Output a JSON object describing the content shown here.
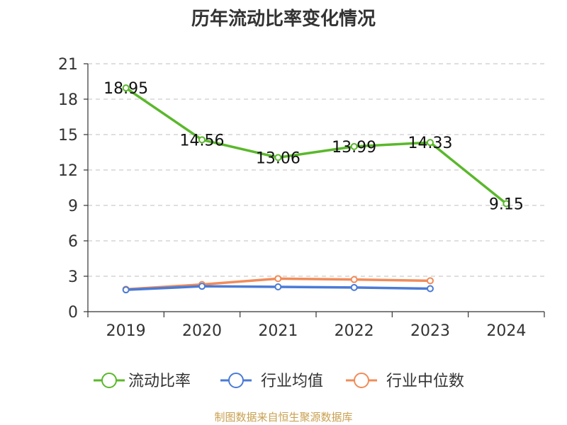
{
  "title": "历年流动比率变化情况",
  "source": "制图数据来自恒生聚源数据库",
  "chart_data": {
    "type": "line",
    "title": "历年流动比率变化情况",
    "categories": [
      "2019",
      "2020",
      "2021",
      "2022",
      "2023",
      "2024"
    ],
    "ylim": [
      0,
      21
    ],
    "yticks": [
      0,
      3,
      6,
      9,
      12,
      15,
      18,
      21
    ],
    "grid": true,
    "legend_position": "bottom",
    "series": [
      {
        "name": "流动比率",
        "color": "#5ab82b",
        "values": [
          18.95,
          14.56,
          13.06,
          13.99,
          14.33,
          9.15
        ],
        "labels": true
      },
      {
        "name": "行业均值",
        "color": "#4a7bd6",
        "values": [
          1.85,
          2.15,
          2.1,
          2.05,
          1.95,
          null
        ],
        "labels": false
      },
      {
        "name": "行业中位数",
        "color": "#f08c5a",
        "values": [
          1.9,
          2.3,
          2.8,
          2.72,
          2.62,
          null
        ],
        "labels": false
      }
    ]
  }
}
